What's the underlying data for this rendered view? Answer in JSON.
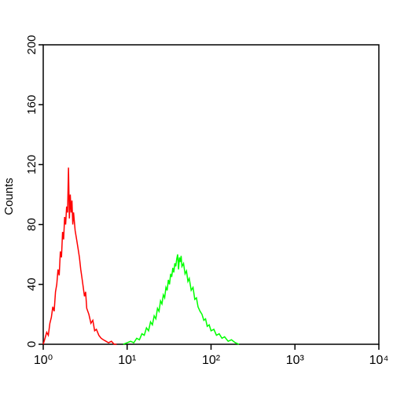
{
  "chart_data": {
    "type": "line",
    "ylabel": "Counts",
    "xscale": "log",
    "xlim": [
      1,
      10000
    ],
    "xticks": [
      {
        "value": 1,
        "label": "10⁰"
      },
      {
        "value": 10,
        "label": "10¹"
      },
      {
        "value": 100,
        "label": "10²"
      },
      {
        "value": 1000,
        "label": "10³"
      },
      {
        "value": 10000,
        "label": "10⁴"
      }
    ],
    "ylim": [
      0,
      200
    ],
    "yticks": [
      0,
      40,
      80,
      120,
      160,
      200
    ],
    "series": [
      {
        "color": "#ff0000",
        "x": [
          1.0,
          1.05,
          1.1,
          1.15,
          1.2,
          1.25,
          1.3,
          1.35,
          1.4,
          1.45,
          1.5,
          1.55,
          1.6,
          1.65,
          1.7,
          1.75,
          1.8,
          1.85,
          1.9,
          1.95,
          2.0,
          2.05,
          2.1,
          2.15,
          2.2,
          2.25,
          2.3,
          2.4,
          2.5,
          2.6,
          2.7,
          2.8,
          2.9,
          3.0,
          3.1,
          3.2,
          3.3,
          3.5,
          3.7,
          3.9,
          4.1,
          4.3,
          4.6,
          4.9,
          5.2,
          5.6,
          6.0,
          6.5,
          7.0,
          7.5
        ],
        "values": [
          0,
          4,
          8,
          6,
          14,
          18,
          25,
          22,
          35,
          40,
          50,
          46,
          62,
          58,
          75,
          70,
          85,
          80,
          92,
          88,
          118,
          84,
          100,
          88,
          96,
          80,
          88,
          76,
          70,
          64,
          58,
          50,
          44,
          38,
          32,
          35,
          24,
          20,
          14,
          16,
          9,
          10,
          6,
          4,
          3,
          2,
          1,
          2,
          0,
          0
        ]
      },
      {
        "color": "#00ff00",
        "x": [
          9,
          10,
          11,
          12,
          13,
          14,
          15,
          16,
          17,
          18,
          19,
          20,
          21,
          22,
          23,
          24,
          25,
          26,
          27,
          28,
          29,
          30,
          31,
          32,
          33,
          34,
          35,
          36,
          37,
          38,
          39,
          40,
          41,
          42,
          43,
          44,
          45,
          47,
          49,
          51,
          53,
          55,
          58,
          61,
          64,
          67,
          70,
          74,
          78,
          82,
          86,
          90,
          95,
          100,
          108,
          116,
          125,
          135,
          145,
          160,
          175,
          195,
          215
        ],
        "values": [
          0,
          1,
          2,
          1,
          4,
          3,
          7,
          6,
          11,
          9,
          15,
          13,
          19,
          17,
          24,
          22,
          29,
          27,
          33,
          31,
          38,
          36,
          43,
          40,
          47,
          45,
          51,
          48,
          54,
          52,
          57,
          60,
          50,
          58,
          55,
          59,
          52,
          54,
          47,
          49,
          42,
          44,
          36,
          38,
          30,
          31,
          25,
          22,
          20,
          16,
          17,
          12,
          13,
          9,
          10,
          6,
          7,
          4,
          5,
          2,
          3,
          1,
          0
        ]
      }
    ]
  }
}
